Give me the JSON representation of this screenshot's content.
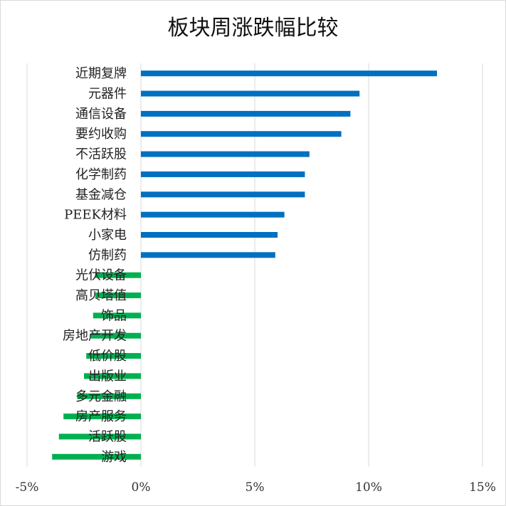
{
  "chart_data": {
    "type": "bar",
    "orientation": "horizontal",
    "title": "板块周涨跌幅比较",
    "categories": [
      "近期复牌",
      "元器件",
      "通信设备",
      "要约收购",
      "不活跃股",
      "化学制药",
      "基金减仓",
      "PEEK材料",
      "小家电",
      "仿制药",
      "光伏设备",
      "高贝塔值",
      "饰品",
      "房地产开发",
      "低价股",
      "出版业",
      "多元金融",
      "房产服务",
      "活跃股",
      "游戏"
    ],
    "values": [
      13.0,
      9.6,
      9.2,
      8.8,
      7.4,
      7.2,
      7.2,
      6.3,
      6.0,
      5.9,
      -2.0,
      -2.0,
      -2.1,
      -2.2,
      -2.4,
      -2.5,
      -2.8,
      -3.4,
      -3.6,
      -3.9
    ],
    "xlim": [
      -5,
      15
    ],
    "xticks": [
      -5,
      0,
      5,
      10,
      15
    ],
    "xtick_labels": [
      "-5%",
      "0%",
      "5%",
      "10%",
      "15%"
    ],
    "grid": true,
    "legend": "none",
    "colors": {
      "positive": "#0070c0",
      "negative": "#00b050",
      "grid": "#d9d9d9"
    }
  }
}
